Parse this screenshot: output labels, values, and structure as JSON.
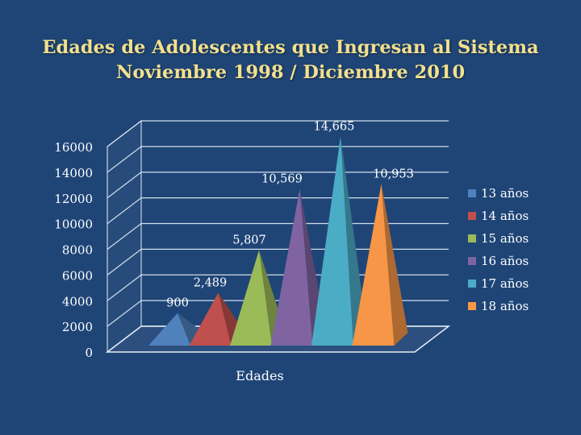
{
  "slide": {
    "title_line1": "Edades de Adolescentes que Ingresan al Sistema",
    "title_line2": "Noviembre 1998 / Diciembre 2010"
  },
  "colors": {
    "background": "#1f4577",
    "title": "#f2e08d",
    "grid": "#e6edf5"
  },
  "chart_data": {
    "type": "bar",
    "style": "3d-pyramid",
    "title": "Edades de Adolescentes que Ingresan al Sistema",
    "subtitle": "Noviembre 1998 / Diciembre 2010",
    "xlabel": "Edades",
    "ylabel": "",
    "ylim": [
      0,
      16000
    ],
    "yticks": [
      "0",
      "2000",
      "4000",
      "6000",
      "8000",
      "10000",
      "12000",
      "14000",
      "16000"
    ],
    "grid": true,
    "legend_position": "right",
    "series": [
      {
        "name": "13 años",
        "value": 900,
        "label": "900",
        "color": "#4f81bd"
      },
      {
        "name": "14 años",
        "value": 2489,
        "label": "2,489",
        "color": "#c0504d"
      },
      {
        "name": "15 años",
        "value": 5807,
        "label": "5,807",
        "color": "#9bbb59"
      },
      {
        "name": "16 años",
        "value": 10569,
        "label": "10,569",
        "color": "#8064a2"
      },
      {
        "name": "17 años",
        "value": 14665,
        "label": "14,665",
        "color": "#4bacc6"
      },
      {
        "name": "18 años",
        "value": 10953,
        "label": "10,953",
        "color": "#f79646"
      }
    ]
  }
}
